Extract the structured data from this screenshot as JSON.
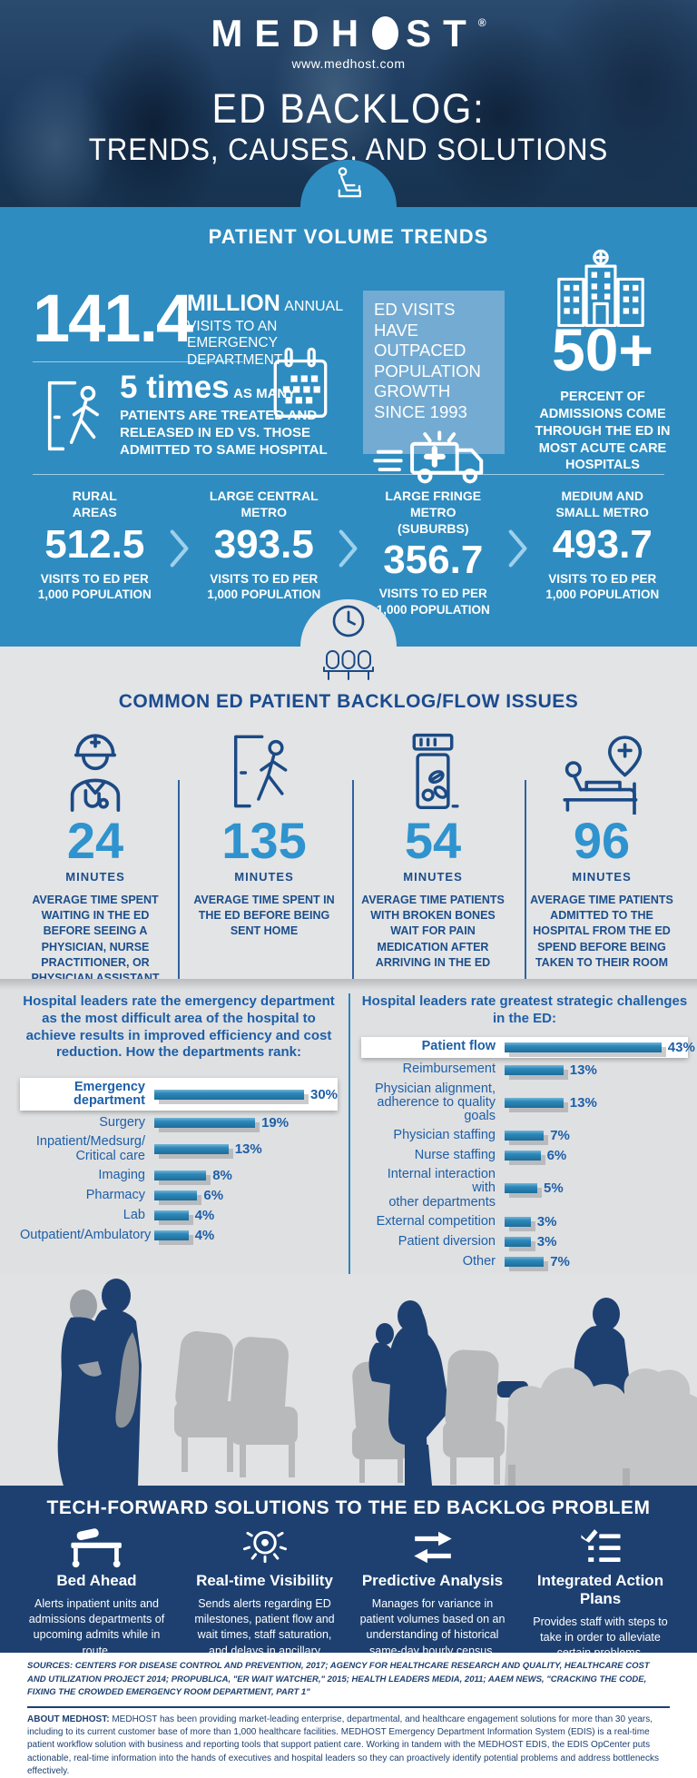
{
  "colors": {
    "blue": "#2e8cc0",
    "light_box": "#74abd2",
    "gray": "#e3e4e5",
    "navy": "#1d4070",
    "dark_text": "#1b4e8c",
    "bar_blue": "#2b87ba",
    "stat_number_blue": "#2e93ce"
  },
  "header": {
    "logo_part1": "MEDH",
    "logo_part2": "ST",
    "registered": "®",
    "website": "www.medhost.com",
    "title_line1": "ED BACKLOG:",
    "title_line2": "TRENDS, CAUSES, AND SOLUTIONS"
  },
  "volume_section": {
    "title": "PATIENT VOLUME TRENDS",
    "stat_million": {
      "number": "141.4",
      "unit": "MILLION",
      "unit_suffix": "ANNUAL",
      "desc": "VISITS TO AN EMERGENCY DEPARTMENT"
    },
    "stat_5times": {
      "number": "5 times",
      "suffix": "AS MANY",
      "desc": "PATIENTS ARE TREATED AND RELEASED IN ED VS. THOSE ADMITTED TO SAME HOSPITAL"
    },
    "callout": "ED VISITS HAVE OUTPACED POPULATION GROWTH SINCE 1993",
    "stat_50": {
      "number": "50+",
      "desc": "PERCENT OF ADMISSIONS COME THROUGH THE ED IN MOST ACUTE CARE HOSPITALS"
    },
    "metro_stats": [
      {
        "label": "RURAL\nAREAS",
        "value": "512.5",
        "unit": "VISITS TO ED PER 1,000 POPULATION"
      },
      {
        "label": "LARGE CENTRAL\nMETRO",
        "value": "393.5",
        "unit": "VISITS TO ED PER 1,000 POPULATION"
      },
      {
        "label": "LARGE FRINGE METRO\n(SUBURBS)",
        "value": "356.7",
        "unit": "VISITS TO ED PER 1,000 POPULATION"
      },
      {
        "label": "MEDIUM AND\nSMALL METRO",
        "value": "493.7",
        "unit": "VISITS TO ED PER 1,000 POPULATION"
      }
    ]
  },
  "backlog_section": {
    "title": "COMMON ED PATIENT BACKLOG/FLOW ISSUES",
    "stats": [
      {
        "value": "24",
        "unit": "MINUTES",
        "desc": "AVERAGE TIME SPENT WAITING IN THE ED BEFORE SEEING A PHYSICIAN, NURSE PRACTITIONER, OR PHYSICIAN ASSISTANT"
      },
      {
        "value": "135",
        "unit": "MINUTES",
        "desc": "AVERAGE TIME SPENT IN THE ED BEFORE BEING SENT HOME"
      },
      {
        "value": "54",
        "unit": "MINUTES",
        "desc": "AVERAGE TIME PATIENTS WITH BROKEN BONES WAIT FOR PAIN MEDICATION AFTER ARRIVING IN THE ED"
      },
      {
        "value": "96",
        "unit": "MINUTES",
        "desc": "AVERAGE TIME PATIENTS ADMITTED TO THE HOSPITAL FROM THE ED SPEND BEFORE BEING TAKEN TO THEIR ROOM"
      }
    ]
  },
  "chart_data": [
    {
      "type": "bar",
      "title": "Hospital leaders rate the emergency department as the most difficult area of the hospital to achieve results in improved efficiency and cost reduction. How the departments rank:",
      "categories": [
        "Emergency department",
        "Surgery",
        "Inpatient/Medsurg/\nCritical care",
        "Imaging",
        "Pharmacy",
        "Lab",
        "Outpatient/Ambulatory"
      ],
      "values": [
        30,
        19,
        13,
        8,
        6,
        4,
        4
      ],
      "data_labels": [
        "30%",
        "19%",
        "13%",
        "8%",
        "6%",
        "4%",
        "4%"
      ],
      "highlight_index": 0,
      "xlim": [
        0,
        33
      ],
      "orientation": "horizontal",
      "legend": "none",
      "grid": "off"
    },
    {
      "type": "bar",
      "title": "Hospital leaders rate greatest strategic challenges in the ED:",
      "categories": [
        "Patient flow",
        "Reimbursement",
        "Physician alignment,\nadherence to quality goals",
        "Physician staffing",
        "Nurse staffing",
        "Internal interaction with\nother departments",
        "External competition",
        "Patient diversion",
        "Other"
      ],
      "values": [
        43,
        13,
        13,
        7,
        6,
        5,
        3,
        3,
        7
      ],
      "data_labels": [
        "43%",
        "13%",
        "13%",
        "7%",
        "6%",
        "5%",
        "3%",
        "3%",
        "7%"
      ],
      "highlight_index": 0,
      "xlim": [
        0,
        47
      ],
      "orientation": "horizontal",
      "legend": "none",
      "grid": "off"
    }
  ],
  "solutions_section": {
    "title": "TECH-FORWARD SOLUTIONS TO THE ED BACKLOG PROBLEM",
    "items": [
      {
        "heading": "Bed Ahead",
        "body": "Alerts inpatient units and admissions departments of upcoming admits while in route."
      },
      {
        "heading": "Real-time Visibility",
        "body": "Sends alerts regarding ED milestones, patient flow and wait times, staff saturation, and delays in ancillary services."
      },
      {
        "heading": "Predictive Analysis",
        "body": "Manages for variance in patient volumes based on an understanding of historical same-day hourly census."
      },
      {
        "heading": "Integrated Action Plans",
        "body": "Provides staff with steps to take in order to alleviate certain problems."
      }
    ]
  },
  "footer": {
    "sources": "SOURCES: CENTERS FOR DISEASE CONTROL AND PREVENTION, 2017; AGENCY FOR HEALTHCARE RESEARCH AND QUALITY, HEALTHCARE COST AND UTILIZATION PROJECT 2014; PROPUBLICA, \"ER WAIT WATCHER,\" 2015; HEALTH LEADERS MEDIA, 2011; AAEM NEWS, \"CRACKING THE CODE, FIXING THE CROWDED EMERGENCY ROOM DEPARTMENT, PART 1\"",
    "about_label": "ABOUT MEDHOST:",
    "about_body": " MEDHOST has been providing market-leading enterprise, departmental, and healthcare engagement solutions for more than 30 years, including to its current customer base of more than 1,000 healthcare facilities. MEDHOST Emergency Department Information System (EDIS) is a real-time patient workflow solution with business and reporting tools that support patient care. Working in tandem with the MEDHOST EDIS, the EDIS OpCenter puts actionable, real-time information into the hands of executives and hospital leaders so they can proactively identify potential problems and address bottlenecks effectively."
  }
}
